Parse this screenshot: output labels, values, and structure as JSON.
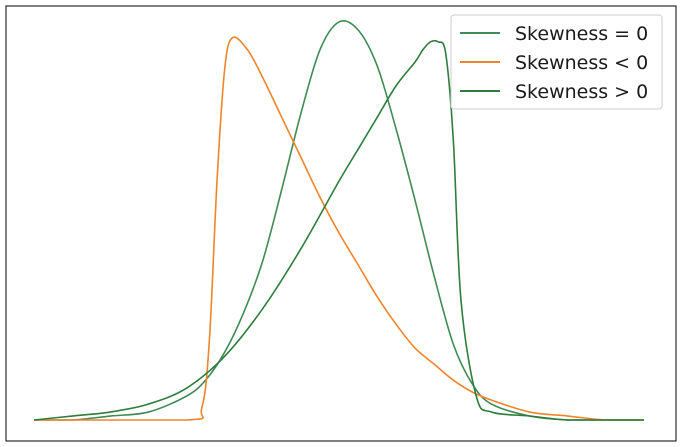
{
  "chart_data": {
    "type": "line",
    "title": "",
    "xlabel": "",
    "ylabel": "",
    "xlim": [
      -4,
      4
    ],
    "ylim": [
      0,
      1.04
    ],
    "grid": false,
    "axes_ticks": false,
    "legend_position": "top-right",
    "series": [
      {
        "name": "Skewness = 0",
        "color": "#3f8a55",
        "x": [
          -4.0,
          -3.5,
          -3.0,
          -2.5,
          -2.0,
          -1.75,
          -1.5,
          -1.25,
          -1.0,
          -0.75,
          -0.5,
          -0.25,
          0.0,
          0.25,
          0.5,
          0.75,
          1.0,
          1.25,
          1.5,
          1.75,
          2.0,
          2.5,
          3.0,
          3.5,
          4.0
        ],
        "y": [
          0.0,
          0.0,
          0.01,
          0.02,
          0.06,
          0.1,
          0.17,
          0.27,
          0.4,
          0.58,
          0.77,
          0.93,
          1.0,
          0.98,
          0.89,
          0.73,
          0.55,
          0.36,
          0.19,
          0.09,
          0.04,
          0.01,
          0.0,
          0.0,
          0.0
        ]
      },
      {
        "name": "Skewness < 0",
        "color": "#f0842c",
        "x": [
          -4.0,
          -2.0,
          -1.8,
          -1.7,
          -1.6,
          -1.5,
          -1.4,
          -1.2,
          -1.0,
          -0.75,
          -0.5,
          -0.25,
          0.0,
          0.25,
          0.5,
          0.75,
          1.0,
          1.25,
          1.5,
          1.75,
          2.0,
          2.5,
          3.0,
          3.5,
          4.0
        ],
        "y": [
          0.0,
          0.0,
          0.03,
          0.2,
          0.6,
          0.88,
          0.96,
          0.93,
          0.86,
          0.76,
          0.66,
          0.56,
          0.47,
          0.39,
          0.31,
          0.24,
          0.18,
          0.14,
          0.1,
          0.07,
          0.05,
          0.02,
          0.01,
          0.0,
          0.0
        ]
      },
      {
        "name": "Skewness > 0",
        "color": "#2e7d3c",
        "x": [
          -4.0,
          -3.5,
          -3.0,
          -2.5,
          -2.0,
          -1.5,
          -1.0,
          -0.5,
          0.0,
          0.25,
          0.5,
          0.75,
          1.0,
          1.1,
          1.2,
          1.3,
          1.4,
          1.5,
          1.6,
          1.8,
          2.0,
          2.5,
          3.0,
          3.5,
          4.0
        ],
        "y": [
          0.0,
          0.01,
          0.02,
          0.04,
          0.08,
          0.16,
          0.28,
          0.43,
          0.6,
          0.68,
          0.76,
          0.84,
          0.9,
          0.93,
          0.95,
          0.95,
          0.92,
          0.7,
          0.3,
          0.06,
          0.02,
          0.01,
          0.0,
          0.0,
          0.0
        ]
      }
    ]
  }
}
